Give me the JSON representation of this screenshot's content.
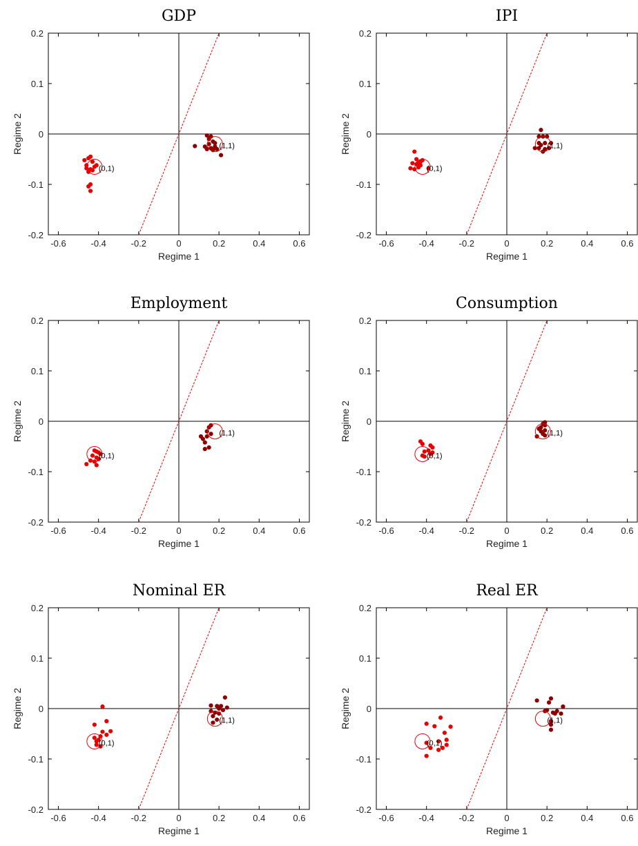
{
  "colors": {
    "regime_0_1": "#e60000",
    "regime_1_1": "#8b0000",
    "reference_line": "#e60000",
    "axes": "#000000"
  },
  "chart_data": [
    {
      "type": "scatter",
      "title": "GDP",
      "xlabel": "Regime 1",
      "ylabel": "Regime 2",
      "xlim": [
        -0.65,
        0.65
      ],
      "ylim": [
        -0.2,
        0.2
      ],
      "xticks": [
        -0.6,
        -0.4,
        -0.2,
        0,
        0.2,
        0.4,
        0.6
      ],
      "yticks": [
        -0.2,
        -0.1,
        0,
        0.1,
        0.2
      ],
      "xtick_labels": [
        "-0.6",
        "-0.4",
        "-0.2",
        "0",
        "0.2",
        "0.4",
        "0.6"
      ],
      "ytick_labels": [
        "-0.2",
        "-0.1",
        "0",
        "0.1",
        "0.2"
      ],
      "reference_line": [
        [
          -0.2,
          -0.2
        ],
        [
          0.2,
          0.2
        ]
      ],
      "anchors": [
        {
          "label": "(0,1)",
          "x": -0.42,
          "y": -0.065
        },
        {
          "label": "(1,1)",
          "x": 0.18,
          "y": -0.02
        }
      ],
      "series": [
        {
          "points": [
            [
              -0.47,
              -0.052
            ],
            [
              -0.45,
              -0.048
            ],
            [
              -0.44,
              -0.045
            ],
            [
              -0.43,
              -0.055
            ],
            [
              -0.46,
              -0.062
            ],
            [
              -0.44,
              -0.07
            ],
            [
              -0.42,
              -0.065
            ],
            [
              -0.41,
              -0.062
            ],
            [
              -0.45,
              -0.075
            ],
            [
              -0.43,
              -0.072
            ],
            [
              -0.44,
              -0.1
            ],
            [
              -0.45,
              -0.104
            ],
            [
              -0.44,
              -0.113
            ],
            [
              -0.46,
              -0.068
            ]
          ]
        },
        {
          "points": [
            [
              0.08,
              -0.024
            ],
            [
              0.14,
              -0.003
            ],
            [
              0.15,
              -0.01
            ],
            [
              0.16,
              -0.005
            ],
            [
              0.17,
              -0.015
            ],
            [
              0.15,
              -0.02
            ],
            [
              0.18,
              -0.025
            ],
            [
              0.14,
              -0.03
            ],
            [
              0.16,
              -0.028
            ],
            [
              0.19,
              -0.03
            ],
            [
              0.17,
              -0.032
            ],
            [
              0.21,
              -0.042
            ],
            [
              0.13,
              -0.025
            ],
            [
              0.18,
              -0.018
            ]
          ]
        }
      ]
    },
    {
      "type": "scatter",
      "title": "IPI",
      "xlabel": "Regime 1",
      "ylabel": "Regime 2",
      "xlim": [
        -0.65,
        0.65
      ],
      "ylim": [
        -0.2,
        0.2
      ],
      "xticks": [
        -0.6,
        -0.4,
        -0.2,
        0,
        0.2,
        0.4,
        0.6
      ],
      "yticks": [
        -0.2,
        -0.1,
        0,
        0.1,
        0.2
      ],
      "xtick_labels": [
        "-0.6",
        "-0.4",
        "-0.2",
        "0",
        "0.2",
        "0.4",
        "0.6"
      ],
      "ytick_labels": [
        "-0.2",
        "-0.1",
        "0",
        "0.1",
        "0.2"
      ],
      "reference_line": [
        [
          -0.2,
          -0.2
        ],
        [
          0.2,
          0.2
        ]
      ],
      "anchors": [
        {
          "label": "(0,1)",
          "x": -0.42,
          "y": -0.065
        },
        {
          "label": "(1,1)",
          "x": 0.18,
          "y": -0.02
        }
      ],
      "series": [
        {
          "points": [
            [
              -0.46,
              -0.035
            ],
            [
              -0.45,
              -0.05
            ],
            [
              -0.43,
              -0.055
            ],
            [
              -0.42,
              -0.052
            ],
            [
              -0.47,
              -0.058
            ],
            [
              -0.45,
              -0.06
            ],
            [
              -0.44,
              -0.066
            ],
            [
              -0.48,
              -0.068
            ],
            [
              -0.46,
              -0.07
            ],
            [
              -0.43,
              -0.062
            ],
            [
              -0.39,
              -0.068
            ],
            [
              -0.44,
              -0.058
            ]
          ]
        },
        {
          "points": [
            [
              0.17,
              0.008
            ],
            [
              0.16,
              -0.005
            ],
            [
              0.18,
              -0.005
            ],
            [
              0.2,
              -0.005
            ],
            [
              0.16,
              -0.018
            ],
            [
              0.19,
              -0.018
            ],
            [
              0.22,
              -0.018
            ],
            [
              0.14,
              -0.028
            ],
            [
              0.16,
              -0.028
            ],
            [
              0.19,
              -0.03
            ],
            [
              0.21,
              -0.028
            ],
            [
              0.18,
              -0.035
            ],
            [
              0.17,
              -0.022
            ]
          ]
        }
      ]
    },
    {
      "type": "scatter",
      "title": "Employment",
      "xlabel": "Regime 1",
      "ylabel": "Regime 2",
      "xlim": [
        -0.65,
        0.65
      ],
      "ylim": [
        -0.2,
        0.2
      ],
      "xticks": [
        -0.6,
        -0.4,
        -0.2,
        0,
        0.2,
        0.4,
        0.6
      ],
      "yticks": [
        -0.2,
        -0.1,
        0,
        0.1,
        0.2
      ],
      "xtick_labels": [
        "-0.6",
        "-0.4",
        "-0.2",
        "0",
        "0.2",
        "0.4",
        "0.6"
      ],
      "ytick_labels": [
        "-0.2",
        "-0.1",
        "0",
        "0.1",
        "0.2"
      ],
      "reference_line": [
        [
          -0.2,
          -0.2
        ],
        [
          0.2,
          0.2
        ]
      ],
      "anchors": [
        {
          "label": "(0,1)",
          "x": -0.42,
          "y": -0.065
        },
        {
          "label": "(1,1)",
          "x": 0.18,
          "y": -0.02
        }
      ],
      "series": [
        {
          "points": [
            [
              -0.42,
              -0.058
            ],
            [
              -0.41,
              -0.06
            ],
            [
              -0.4,
              -0.062
            ],
            [
              -0.39,
              -0.065
            ],
            [
              -0.43,
              -0.068
            ],
            [
              -0.41,
              -0.072
            ],
            [
              -0.4,
              -0.075
            ],
            [
              -0.42,
              -0.08
            ],
            [
              -0.41,
              -0.087
            ],
            [
              -0.46,
              -0.085
            ],
            [
              -0.44,
              -0.078
            ]
          ]
        },
        {
          "points": [
            [
              0.15,
              -0.012
            ],
            [
              0.16,
              -0.008
            ],
            [
              0.14,
              -0.02
            ],
            [
              0.16,
              -0.025
            ],
            [
              0.11,
              -0.03
            ],
            [
              0.12,
              -0.035
            ],
            [
              0.13,
              -0.042
            ],
            [
              0.15,
              -0.052
            ],
            [
              0.13,
              -0.055
            ],
            [
              0.14,
              -0.03
            ]
          ]
        }
      ]
    },
    {
      "type": "scatter",
      "title": "Consumption",
      "xlabel": "Regime 1",
      "ylabel": "Regime 2",
      "xlim": [
        -0.65,
        0.65
      ],
      "ylim": [
        -0.2,
        0.2
      ],
      "xticks": [
        -0.6,
        -0.4,
        -0.2,
        0,
        0.2,
        0.4,
        0.6
      ],
      "yticks": [
        -0.2,
        -0.1,
        0,
        0.1,
        0.2
      ],
      "xtick_labels": [
        "-0.6",
        "-0.4",
        "-0.2",
        "0",
        "0.2",
        "0.4",
        "0.6"
      ],
      "ytick_labels": [
        "-0.2",
        "-0.1",
        "0",
        "0.1",
        "0.2"
      ],
      "reference_line": [
        [
          -0.2,
          -0.2
        ],
        [
          0.2,
          0.2
        ]
      ],
      "anchors": [
        {
          "label": "(0,1)",
          "x": -0.42,
          "y": -0.065
        },
        {
          "label": "(1,1)",
          "x": 0.18,
          "y": -0.02
        }
      ],
      "series": [
        {
          "points": [
            [
              -0.43,
              -0.04
            ],
            [
              -0.42,
              -0.045
            ],
            [
              -0.38,
              -0.048
            ],
            [
              -0.37,
              -0.052
            ],
            [
              -0.39,
              -0.058
            ],
            [
              -0.41,
              -0.06
            ],
            [
              -0.37,
              -0.062
            ],
            [
              -0.42,
              -0.068
            ],
            [
              -0.41,
              -0.07
            ],
            [
              -0.38,
              -0.065
            ]
          ]
        },
        {
          "points": [
            [
              0.19,
              -0.002
            ],
            [
              0.18,
              -0.005
            ],
            [
              0.19,
              -0.008
            ],
            [
              0.17,
              -0.012
            ],
            [
              0.16,
              -0.015
            ],
            [
              0.17,
              -0.02
            ],
            [
              0.19,
              -0.028
            ],
            [
              0.15,
              -0.03
            ],
            [
              0.18,
              -0.025
            ],
            [
              0.19,
              -0.018
            ]
          ]
        }
      ]
    },
    {
      "type": "scatter",
      "title": "Nominal ER",
      "xlabel": "Regime 1",
      "ylabel": "Regime 2",
      "xlim": [
        -0.65,
        0.65
      ],
      "ylim": [
        -0.2,
        0.2
      ],
      "xticks": [
        -0.6,
        -0.4,
        -0.2,
        0,
        0.2,
        0.4,
        0.6
      ],
      "yticks": [
        -0.2,
        -0.1,
        0,
        0.1,
        0.2
      ],
      "xtick_labels": [
        "-0.6",
        "-0.4",
        "-0.2",
        "0",
        "0.2",
        "0.4",
        "0.6"
      ],
      "ytick_labels": [
        "-0.2",
        "-0.1",
        "0",
        "0.1",
        "0.2"
      ],
      "reference_line": [
        [
          -0.2,
          -0.2
        ],
        [
          0.2,
          0.2
        ]
      ],
      "anchors": [
        {
          "label": "(0,1)",
          "x": -0.42,
          "y": -0.065
        },
        {
          "label": "(1,1)",
          "x": 0.18,
          "y": -0.02
        }
      ],
      "series": [
        {
          "points": [
            [
              -0.38,
              0.004
            ],
            [
              -0.36,
              -0.025
            ],
            [
              -0.42,
              -0.032
            ],
            [
              -0.34,
              -0.045
            ],
            [
              -0.38,
              -0.046
            ],
            [
              -0.36,
              -0.052
            ],
            [
              -0.39,
              -0.055
            ],
            [
              -0.41,
              -0.065
            ],
            [
              -0.4,
              -0.062
            ],
            [
              -0.41,
              -0.072
            ],
            [
              -0.39,
              -0.075
            ],
            [
              -0.42,
              -0.058
            ]
          ]
        },
        {
          "points": [
            [
              0.23,
              0.022
            ],
            [
              0.19,
              0.005
            ],
            [
              0.16,
              0.006
            ],
            [
              0.21,
              0.005
            ],
            [
              0.24,
              0.002
            ],
            [
              0.2,
              0.0
            ],
            [
              0.16,
              -0.005
            ],
            [
              0.18,
              -0.008
            ],
            [
              0.2,
              -0.01
            ],
            [
              0.17,
              -0.015
            ],
            [
              0.22,
              -0.003
            ],
            [
              0.17,
              -0.028
            ],
            [
              0.19,
              -0.022
            ]
          ]
        }
      ]
    },
    {
      "type": "scatter",
      "title": "Real ER",
      "xlabel": "Regime 1",
      "ylabel": "Regime 2",
      "xlim": [
        -0.65,
        0.65
      ],
      "ylim": [
        -0.2,
        0.2
      ],
      "xticks": [
        -0.6,
        -0.4,
        -0.2,
        0,
        0.2,
        0.4,
        0.6
      ],
      "yticks": [
        -0.2,
        -0.1,
        0,
        0.1,
        0.2
      ],
      "xtick_labels": [
        "-0.6",
        "-0.4",
        "-0.2",
        "0",
        "0.2",
        "0.4",
        "0.6"
      ],
      "ytick_labels": [
        "-0.2",
        "-0.1",
        "0",
        "0.1",
        "0.2"
      ],
      "reference_line": [
        [
          -0.2,
          -0.2
        ],
        [
          0.2,
          0.2
        ]
      ],
      "anchors": [
        {
          "label": "(0,1)",
          "x": -0.42,
          "y": -0.065
        },
        {
          "label": "(1,1)",
          "x": 0.18,
          "y": -0.02
        }
      ],
      "series": [
        {
          "points": [
            [
              -0.4,
              -0.03
            ],
            [
              -0.33,
              -0.018
            ],
            [
              -0.36,
              -0.035
            ],
            [
              -0.28,
              -0.036
            ],
            [
              -0.31,
              -0.048
            ],
            [
              -0.4,
              -0.068
            ],
            [
              -0.34,
              -0.065
            ],
            [
              -0.3,
              -0.062
            ],
            [
              -0.38,
              -0.078
            ],
            [
              -0.34,
              -0.082
            ],
            [
              -0.32,
              -0.078
            ],
            [
              -0.4,
              -0.094
            ],
            [
              -0.3,
              -0.072
            ]
          ]
        },
        {
          "points": [
            [
              0.15,
              0.016
            ],
            [
              0.22,
              0.02
            ],
            [
              0.21,
              0.012
            ],
            [
              0.28,
              0.004
            ],
            [
              0.2,
              -0.003
            ],
            [
              0.25,
              -0.005
            ],
            [
              0.24,
              -0.01
            ],
            [
              0.23,
              -0.008
            ],
            [
              0.27,
              -0.01
            ],
            [
              0.22,
              -0.025
            ],
            [
              0.22,
              -0.032
            ],
            [
              0.22,
              -0.042
            ],
            [
              0.19,
              -0.005
            ]
          ]
        }
      ]
    }
  ]
}
